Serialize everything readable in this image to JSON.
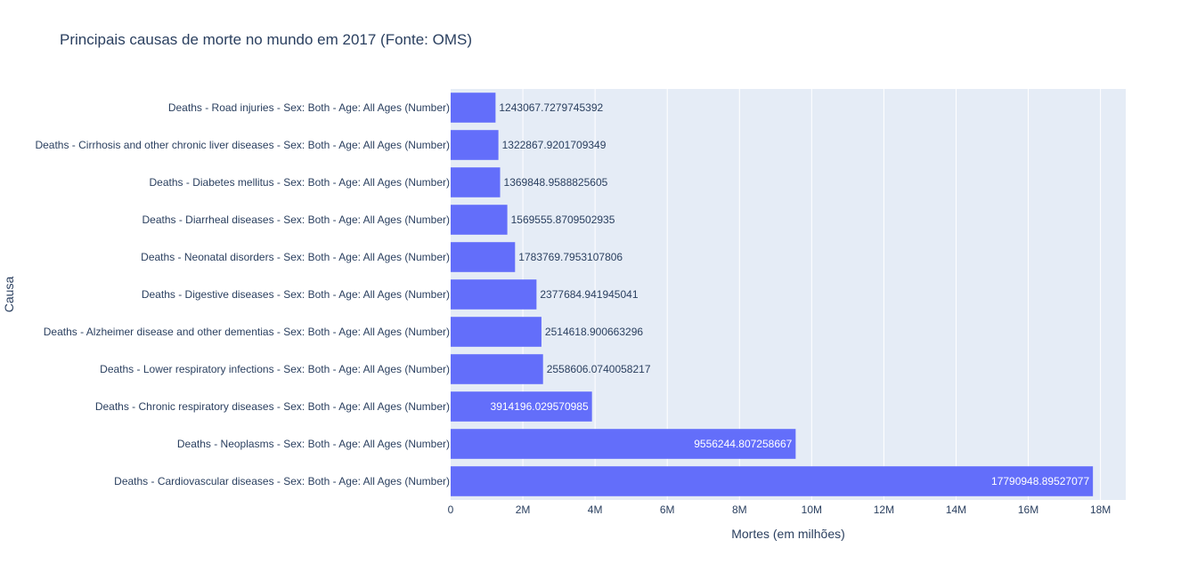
{
  "chart_data": {
    "type": "bar",
    "orientation": "horizontal",
    "title": "Principais causas de morte no mundo em 2017 (Fonte: OMS)",
    "xlabel": "Mortes (em milhões)",
    "ylabel": "Causa",
    "xlim": [
      0,
      18700000
    ],
    "x_ticks": [
      0,
      2000000,
      4000000,
      6000000,
      8000000,
      10000000,
      12000000,
      14000000,
      16000000,
      18000000
    ],
    "x_tick_labels": [
      "0",
      "2M",
      "4M",
      "6M",
      "8M",
      "10M",
      "12M",
      "14M",
      "16M",
      "18M"
    ],
    "grid": true,
    "legend": "none",
    "colors": {
      "bar": "#636efa",
      "plot_bg": "#e5ecf6",
      "grid": "#ffffff",
      "text": "#2a3f5f"
    },
    "categories": [
      "Deaths - Cardiovascular diseases - Sex: Both - Age: All Ages (Number)",
      "Deaths - Neoplasms - Sex: Both - Age: All Ages (Number)",
      "Deaths - Chronic respiratory diseases - Sex: Both - Age: All Ages (Number)",
      "Deaths - Lower respiratory infections - Sex: Both - Age: All Ages (Number)",
      "Deaths - Alzheimer disease and other dementias - Sex: Both - Age: All Ages (Number)",
      "Deaths - Digestive diseases - Sex: Both - Age: All Ages (Number)",
      "Deaths - Neonatal disorders - Sex: Both - Age: All Ages (Number)",
      "Deaths - Diarrheal diseases - Sex: Both - Age: All Ages (Number)",
      "Deaths - Diabetes mellitus - Sex: Both - Age: All Ages (Number)",
      "Deaths - Cirrhosis and other chronic liver diseases - Sex: Both - Age: All Ages (Number)",
      "Deaths - Road injuries - Sex: Both - Age: All Ages (Number)"
    ],
    "values": [
      17790948.89527077,
      9556244.807258667,
      3914196.029570985,
      2558606.0740058217,
      2514618.900663296,
      2377684.941945041,
      1783769.7953107806,
      1569555.8709502935,
      1369848.9588825605,
      1322867.9201709349,
      1243067.7279745392
    ],
    "value_labels": [
      "17790948.89527077",
      "9556244.807258667",
      "3914196.029570985",
      "2558606.0740058217",
      "2514618.900663296",
      "2377684.941945041",
      "1783769.7953107806",
      "1569555.8709502935",
      "1369848.9588825605",
      "1322867.9201709349",
      "1243067.7279745392"
    ]
  }
}
